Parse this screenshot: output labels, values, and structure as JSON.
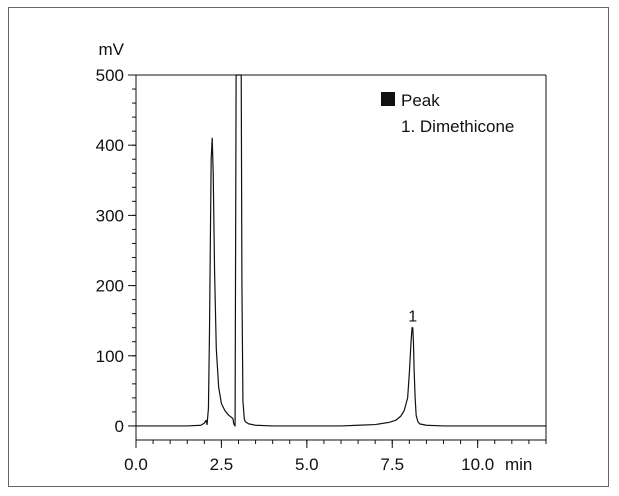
{
  "chart_data": {
    "type": "line",
    "ylabel": "mV",
    "xlabel": "min",
    "xlim": [
      0.0,
      12.0
    ],
    "ylim": [
      -20,
      500
    ],
    "x_ticks": [
      0.0,
      2.5,
      5.0,
      7.5,
      10.0
    ],
    "x_tick_labels": [
      "0.0",
      "2.5",
      "5.0",
      "7.5",
      "10.0"
    ],
    "x_minor_step": 0.5,
    "y_ticks": [
      0,
      100,
      200,
      300,
      400,
      500
    ],
    "y_tick_labels": [
      "0",
      "100",
      "200",
      "300",
      "400",
      "500"
    ],
    "y_minor_step": 20,
    "grid": false,
    "legend": {
      "position": "top-right",
      "title": "Peak",
      "entries": [
        "1. Dimethicone"
      ]
    },
    "series": [
      {
        "x": [
          0.0,
          1.5,
          1.9,
          2.0,
          2.05,
          2.08,
          2.12,
          2.15,
          2.18,
          2.2,
          2.23,
          2.26,
          2.3,
          2.35,
          2.42,
          2.5,
          2.6,
          2.7,
          2.8,
          2.84,
          2.86,
          2.9,
          2.93,
          2.96,
          3.0,
          3.04,
          3.08,
          3.1,
          3.13,
          3.17,
          3.2,
          3.3,
          3.5,
          4.0,
          5.0,
          6.0,
          6.5,
          7.0,
          7.4,
          7.6,
          7.75,
          7.85,
          7.95,
          8.0,
          8.05,
          8.08,
          8.1,
          8.12,
          8.14,
          8.17,
          8.2,
          8.25,
          8.3,
          8.5,
          9.0,
          10.0,
          11.0,
          12.0
        ],
        "y": [
          0,
          0,
          1,
          4,
          8,
          2,
          25,
          130,
          280,
          380,
          410,
          360,
          220,
          110,
          55,
          32,
          22,
          16,
          12,
          10,
          3,
          0,
          500,
          500,
          500,
          500,
          500,
          200,
          35,
          10,
          6,
          3,
          1,
          0,
          0,
          0,
          1,
          2,
          5,
          8,
          14,
          22,
          40,
          75,
          120,
          140,
          140,
          120,
          80,
          40,
          15,
          6,
          3,
          1,
          0,
          0,
          0,
          0
        ]
      }
    ],
    "annotations": [
      {
        "text": "1",
        "x": 8.1,
        "y": 140
      }
    ]
  }
}
